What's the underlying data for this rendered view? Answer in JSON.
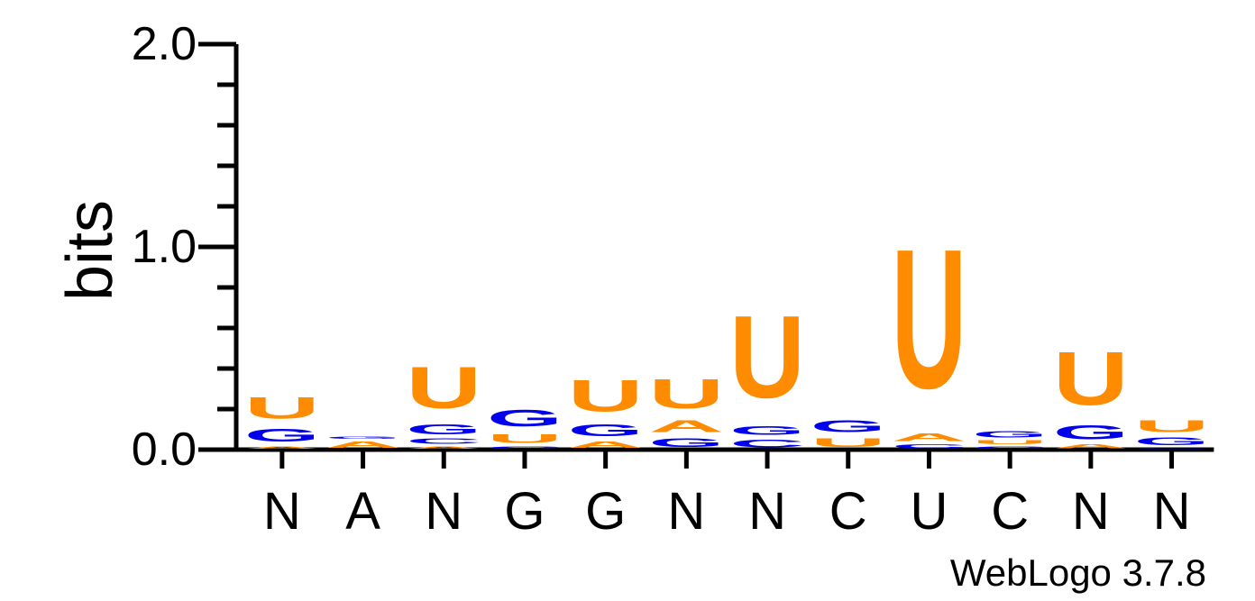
{
  "chart_data": {
    "type": "sequence-logo",
    "ylabel": "bits",
    "ylim": [
      0,
      2
    ],
    "yticks": [
      "0.0",
      "1.0",
      "2.0"
    ],
    "minor_tick_step": 0.2,
    "credit": "WebLogo 3.7.8",
    "colors": {
      "U": "#ff8c00",
      "G": "#0000ee",
      "A": "#ff8c00",
      "C": "#0000ee"
    },
    "positions": [
      {
        "consensus": "N",
        "stack": [
          {
            "letter": "A",
            "bits": 0.02
          },
          {
            "letter": "G",
            "bits": 0.1
          },
          {
            "letter": "U",
            "bits": 0.17
          }
        ]
      },
      {
        "consensus": "A",
        "stack": [
          {
            "letter": "A",
            "bits": 0.05
          },
          {
            "letter": "G",
            "bits": 0.02
          }
        ]
      },
      {
        "consensus": "N",
        "stack": [
          {
            "letter": "A",
            "bits": 0.02
          },
          {
            "letter": "C",
            "bits": 0.04
          },
          {
            "letter": "G",
            "bits": 0.08
          },
          {
            "letter": "U",
            "bits": 0.33
          }
        ]
      },
      {
        "consensus": "G",
        "stack": [
          {
            "letter": "C",
            "bits": 0.02
          },
          {
            "letter": "U",
            "bits": 0.07
          },
          {
            "letter": "G",
            "bits": 0.13
          }
        ]
      },
      {
        "consensus": "G",
        "stack": [
          {
            "letter": "A",
            "bits": 0.05
          },
          {
            "letter": "G",
            "bits": 0.09
          },
          {
            "letter": "U",
            "bits": 0.25
          }
        ]
      },
      {
        "consensus": "N",
        "stack": [
          {
            "letter": "G",
            "bits": 0.07
          },
          {
            "letter": "A",
            "bits": 0.09
          },
          {
            "letter": "U",
            "bits": 0.23
          }
        ]
      },
      {
        "consensus": "N",
        "stack": [
          {
            "letter": "C",
            "bits": 0.06
          },
          {
            "letter": "G",
            "bits": 0.07
          },
          {
            "letter": "U",
            "bits": 0.65
          }
        ]
      },
      {
        "consensus": "C",
        "stack": [
          {
            "letter": "U",
            "bits": 0.07
          },
          {
            "letter": "G",
            "bits": 0.09
          }
        ]
      },
      {
        "consensus": "U",
        "stack": [
          {
            "letter": "C",
            "bits": 0.03
          },
          {
            "letter": "A",
            "bits": 0.06
          },
          {
            "letter": "U",
            "bits": 1.1
          }
        ]
      },
      {
        "consensus": "C",
        "stack": [
          {
            "letter": "C",
            "bits": 0.02
          },
          {
            "letter": "U",
            "bits": 0.03
          },
          {
            "letter": "G",
            "bits": 0.05
          }
        ]
      },
      {
        "consensus": "N",
        "stack": [
          {
            "letter": "A",
            "bits": 0.03
          },
          {
            "letter": "G",
            "bits": 0.11
          },
          {
            "letter": "U",
            "bits": 0.42
          }
        ]
      },
      {
        "consensus": "N",
        "stack": [
          {
            "letter": "C",
            "bits": 0.01
          },
          {
            "letter": "G",
            "bits": 0.06
          },
          {
            "letter": "U",
            "bits": 0.09
          }
        ]
      }
    ]
  }
}
